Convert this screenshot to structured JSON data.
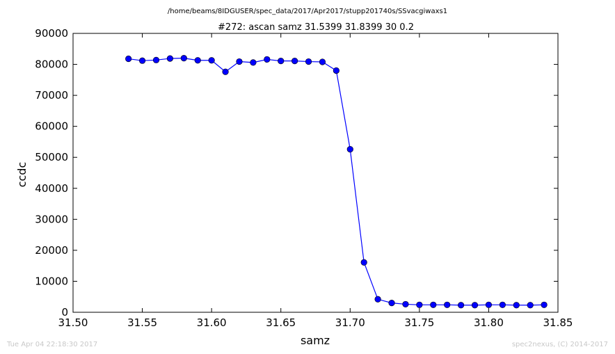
{
  "path_title": "/home/beams/8IDGUSER/spec_data/2017/Apr2017/stupp201740s/SSvacgiwaxs1",
  "footer": {
    "timestamp": "Tue Apr 04 22:18:30 2017",
    "credit": "spec2nexus, (C) 2014-2017"
  },
  "colors": {
    "series": "#0000ff",
    "axes": "#000000",
    "footer_text": "#c8c8c8"
  },
  "chart_data": {
    "type": "line",
    "title": "#272: ascan  samz 31.5399 31.8399  30 0.2",
    "xlabel": "samz",
    "ylabel": "ccdc",
    "xlim": [
      31.5,
      31.85
    ],
    "ylim": [
      0,
      90000
    ],
    "xticks": [
      "31.50",
      "31.55",
      "31.60",
      "31.65",
      "31.70",
      "31.75",
      "31.80",
      "31.85"
    ],
    "yticks": [
      "0",
      "10000",
      "20000",
      "30000",
      "40000",
      "50000",
      "60000",
      "70000",
      "80000",
      "90000"
    ],
    "grid": false,
    "legend": "none",
    "marker": "circle",
    "series": [
      {
        "x": [
          31.54,
          31.55,
          31.56,
          31.57,
          31.58,
          31.59,
          31.6,
          31.61,
          31.62,
          31.63,
          31.64,
          31.65,
          31.66,
          31.67,
          31.68,
          31.69,
          31.7,
          31.71,
          31.72,
          31.73,
          31.74,
          31.75,
          31.76,
          31.77,
          31.78,
          31.79,
          31.8,
          31.81,
          31.82,
          31.83,
          31.84
        ],
        "y": [
          81800,
          81200,
          81400,
          81900,
          82000,
          81300,
          81300,
          77600,
          80900,
          80600,
          81600,
          81100,
          81100,
          80900,
          80800,
          78000,
          52600,
          16100,
          4200,
          3000,
          2600,
          2400,
          2400,
          2400,
          2300,
          2300,
          2400,
          2400,
          2300,
          2300,
          2400
        ]
      }
    ]
  }
}
